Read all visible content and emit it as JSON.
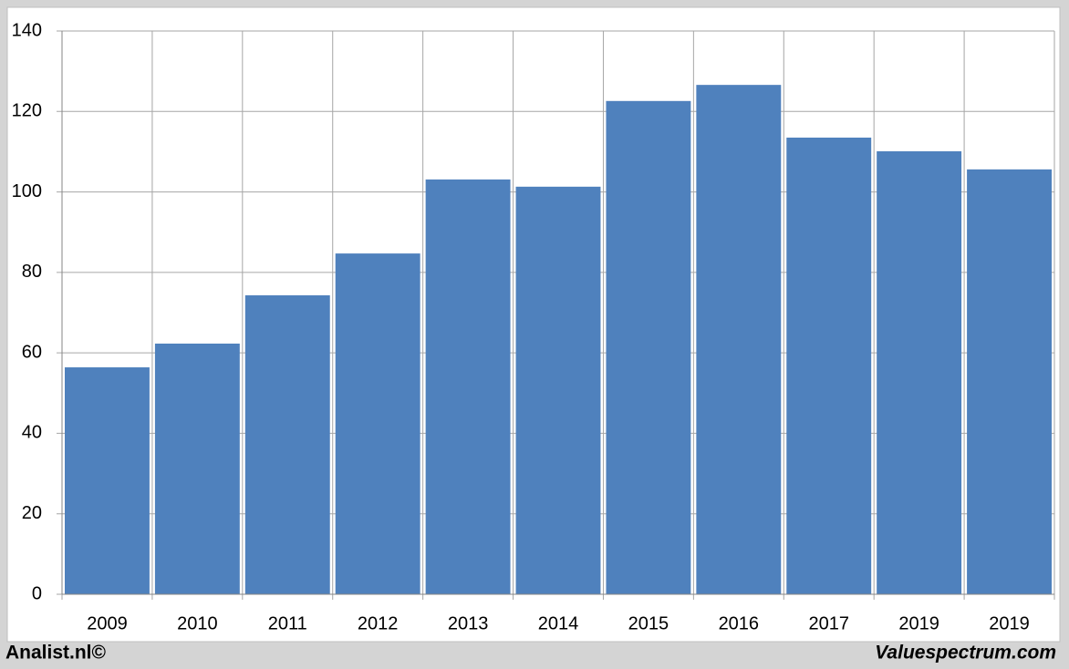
{
  "chart_data": {
    "type": "bar",
    "categories": [
      "2009",
      "2010",
      "2011",
      "2012",
      "2013",
      "2014",
      "2015",
      "2016",
      "2017",
      "2019",
      "2019"
    ],
    "values": [
      56.4,
      62.3,
      74.3,
      84.7,
      103.1,
      101.3,
      122.6,
      126.6,
      113.5,
      110.1,
      105.6
    ],
    "color": "#4f81bd",
    "ylim": [
      0,
      140
    ],
    "yticks": [
      0,
      20,
      40,
      60,
      80,
      100,
      120,
      140
    ],
    "grid": true,
    "footer_left": "Analist.nl©",
    "footer_right": "Valuespectrum.com"
  }
}
